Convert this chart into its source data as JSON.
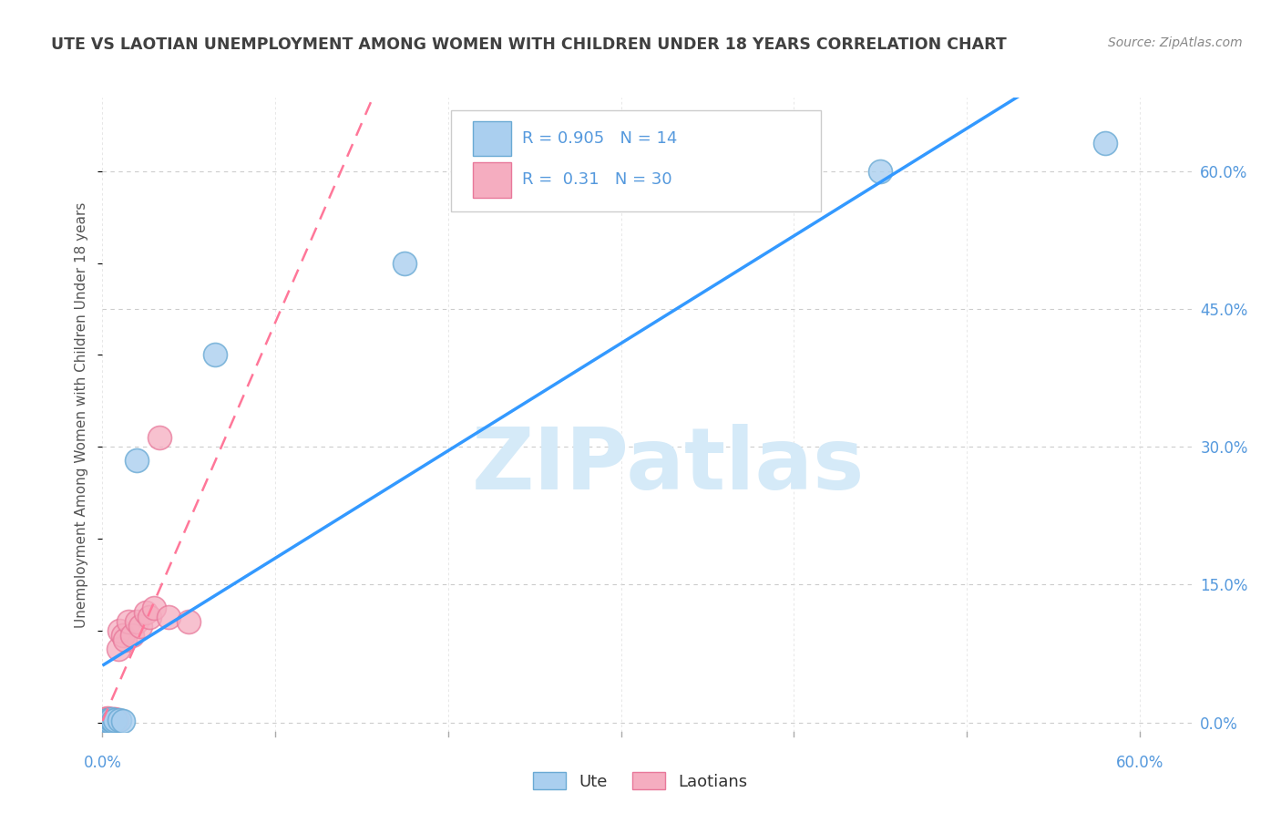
{
  "title": "UTE VS LAOTIAN UNEMPLOYMENT AMONG WOMEN WITH CHILDREN UNDER 18 YEARS CORRELATION CHART",
  "source": "Source: ZipAtlas.com",
  "ylabel": "Unemployment Among Women with Children Under 18 years",
  "xlim": [
    0.0,
    0.63
  ],
  "ylim": [
    -0.01,
    0.68
  ],
  "xticks": [
    0.0,
    0.1,
    0.2,
    0.3,
    0.4,
    0.5,
    0.6
  ],
  "xticklabels": [
    "0.0%",
    "",
    "",
    "",
    "",
    "",
    "60.0%"
  ],
  "yticks": [
    0.0,
    0.15,
    0.3,
    0.45,
    0.6
  ],
  "yticklabels": [
    "0.0%",
    "15.0%",
    "30.0%",
    "45.0%",
    "60.0%"
  ],
  "ute_color": "#aacfef",
  "ute_edge_color": "#6aaad4",
  "laotian_color": "#f5adc0",
  "laotian_edge_color": "#e8789a",
  "ute_R": 0.905,
  "ute_N": 14,
  "laotian_R": 0.31,
  "laotian_N": 30,
  "ute_line_color": "#3399ff",
  "laotian_line_color": "#ff7799",
  "watermark": "ZIPatlas",
  "watermark_color": "#d5eaf8",
  "background_color": "#ffffff",
  "grid_color": "#cccccc",
  "title_color": "#404040",
  "axis_label_color": "#555555",
  "tick_label_color": "#5599dd",
  "legend_text_color": "#000000",
  "legend_val_color": "#5599dd",
  "ute_x": [
    0.002,
    0.003,
    0.004,
    0.005,
    0.005,
    0.006,
    0.007,
    0.01,
    0.012,
    0.02,
    0.065,
    0.175,
    0.45,
    0.58
  ],
  "ute_y": [
    0.002,
    0.003,
    0.002,
    0.003,
    0.004,
    0.002,
    0.003,
    0.003,
    0.002,
    0.285,
    0.4,
    0.5,
    0.6,
    0.63
  ],
  "laotian_x": [
    0.001,
    0.001,
    0.002,
    0.002,
    0.003,
    0.003,
    0.003,
    0.004,
    0.004,
    0.005,
    0.005,
    0.006,
    0.006,
    0.007,
    0.007,
    0.008,
    0.009,
    0.01,
    0.012,
    0.013,
    0.015,
    0.017,
    0.02,
    0.022,
    0.025,
    0.027,
    0.03,
    0.033,
    0.038,
    0.05
  ],
  "laotian_y": [
    0.003,
    0.004,
    0.002,
    0.004,
    0.002,
    0.003,
    0.005,
    0.003,
    0.004,
    0.002,
    0.003,
    0.004,
    0.003,
    0.003,
    0.004,
    0.003,
    0.08,
    0.1,
    0.095,
    0.09,
    0.11,
    0.095,
    0.11,
    0.105,
    0.12,
    0.115,
    0.125,
    0.31,
    0.115,
    0.11
  ]
}
